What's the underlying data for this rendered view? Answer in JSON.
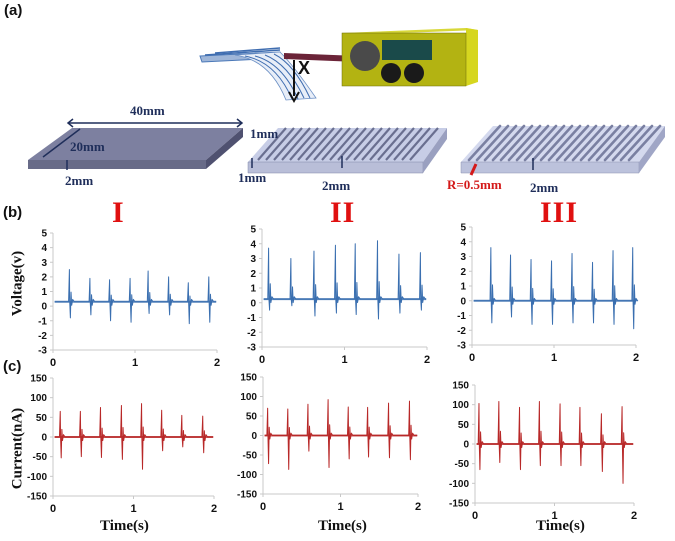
{
  "figure": {
    "panel_labels": {
      "a": "(a)",
      "b": "(b)",
      "c": "(c)"
    },
    "setup": {
      "displacement_label": "X",
      "colors": {
        "device_body": "#b5b514",
        "device_side": "#d6d61f",
        "screen": "#1a4a4a",
        "rod": "#6b2438",
        "knob": "#222222"
      }
    },
    "samples": [
      {
        "name": "I",
        "dims": {
          "length": "40mm",
          "width": "20mm",
          "thickness": "2mm"
        }
      },
      {
        "name": "II",
        "dims": {
          "groove_width": "1mm",
          "groove_depth": "1mm",
          "thickness": "2mm"
        }
      },
      {
        "name": "III",
        "dims": {
          "radius": "R=0.5mm",
          "thickness": "2mm"
        }
      }
    ],
    "column_titles": [
      "I",
      "II",
      "III"
    ],
    "voltage_axis_title": "Voltage(v)",
    "current_axis_title": "Current(nA)",
    "time_axis_title": "Time(s)",
    "voltage_ticks": [
      "5",
      "4",
      "3",
      "2",
      "1",
      "0",
      "-1",
      "-2",
      "-3"
    ],
    "current_ticks": [
      "150",
      "100",
      "50",
      "0",
      "-50",
      "-100",
      "-150"
    ],
    "x_ticks": [
      "0",
      "1",
      "2"
    ],
    "colors": {
      "voltage_line": "#3a6fb0",
      "current_line": "#b82828",
      "title_red": "#e01010",
      "dim_blue": "#1f2e5a"
    }
  },
  "chart_data": [
    {
      "type": "line",
      "panel": "(b) I",
      "title": "I",
      "xlabel": "",
      "ylabel": "Voltage(v)",
      "xlim": [
        0,
        2
      ],
      "ylim": [
        -3,
        5
      ],
      "grid": false,
      "baseline": 0.3,
      "spikes": {
        "x": [
          0.2,
          0.45,
          0.69,
          0.94,
          1.16,
          1.41,
          1.65,
          1.9
        ],
        "peak": [
          2.5,
          1.9,
          1.8,
          1.9,
          2.4,
          2.0,
          1.6,
          2.0
        ],
        "trough": [
          -0.8,
          -0.6,
          -1.0,
          -1.1,
          -0.5,
          -0.6,
          -1.2,
          -1.1
        ]
      }
    },
    {
      "type": "line",
      "panel": "(b) II",
      "title": "II",
      "xlabel": "",
      "ylabel": "Voltage(v)",
      "xlim": [
        0,
        2
      ],
      "ylim": [
        -3,
        5
      ],
      "grid": false,
      "baseline": 0.25,
      "spikes": {
        "x": [
          0.08,
          0.35,
          0.63,
          0.89,
          1.13,
          1.4,
          1.66,
          1.92
        ],
        "peak": [
          3.7,
          3.0,
          3.5,
          3.9,
          4.0,
          4.2,
          3.3,
          3.4
        ],
        "trough": [
          -0.5,
          -0.2,
          -0.9,
          -0.7,
          -0.8,
          -1.1,
          -0.7,
          -0.5
        ]
      }
    },
    {
      "type": "line",
      "panel": "(b) III",
      "title": "III",
      "xlabel": "",
      "ylabel": "Voltage(v)",
      "xlim": [
        0,
        2
      ],
      "ylim": [
        -3,
        5
      ],
      "grid": false,
      "baseline": 0.0,
      "spikes": {
        "x": [
          0.23,
          0.47,
          0.72,
          0.97,
          1.22,
          1.47,
          1.72,
          1.96
        ],
        "peak": [
          3.6,
          3.1,
          2.8,
          2.7,
          3.2,
          2.6,
          3.4,
          3.6
        ],
        "trough": [
          -1.5,
          -1.1,
          -1.6,
          -1.6,
          -1.5,
          -1.5,
          -1.6,
          -1.9
        ]
      }
    },
    {
      "type": "line",
      "panel": "(c) I",
      "title": "",
      "xlabel": "Time(s)",
      "ylabel": "Current(nA)",
      "xlim": [
        0,
        2
      ],
      "ylim": [
        -150,
        150
      ],
      "grid": false,
      "baseline": 0,
      "spikes": {
        "x": [
          0.09,
          0.34,
          0.59,
          0.85,
          1.1,
          1.35,
          1.6,
          1.86
        ],
        "peak": [
          65,
          65,
          75,
          80,
          85,
          68,
          55,
          53
        ],
        "trough": [
          -53,
          -50,
          -52,
          -57,
          -82,
          -35,
          -25,
          -40
        ]
      }
    },
    {
      "type": "line",
      "panel": "(c) II",
      "title": "",
      "xlabel": "Time(s)",
      "ylabel": "Current(nA)",
      "xlim": [
        0,
        2
      ],
      "ylim": [
        -150,
        150
      ],
      "grid": false,
      "baseline": 0,
      "spikes": {
        "x": [
          0.06,
          0.32,
          0.58,
          0.84,
          1.1,
          1.35,
          1.62,
          1.89
        ],
        "peak": [
          70,
          68,
          80,
          92,
          73,
          72,
          83,
          88
        ],
        "trough": [
          -72,
          -87,
          -40,
          -82,
          -60,
          -55,
          -57,
          -62
        ]
      }
    },
    {
      "type": "line",
      "panel": "(c) III",
      "title": "",
      "xlabel": "Time(s)",
      "ylabel": "Current(nA)",
      "xlim": [
        0,
        2
      ],
      "ylim": [
        -150,
        150
      ],
      "grid": false,
      "baseline": 0,
      "spikes": {
        "x": [
          0.05,
          0.3,
          0.56,
          0.81,
          1.07,
          1.32,
          1.59,
          1.85
        ],
        "peak": [
          103,
          108,
          93,
          108,
          102,
          93,
          77,
          95
        ],
        "trough": [
          -65,
          -47,
          -65,
          -55,
          -55,
          -55,
          -70,
          -100
        ]
      }
    }
  ]
}
